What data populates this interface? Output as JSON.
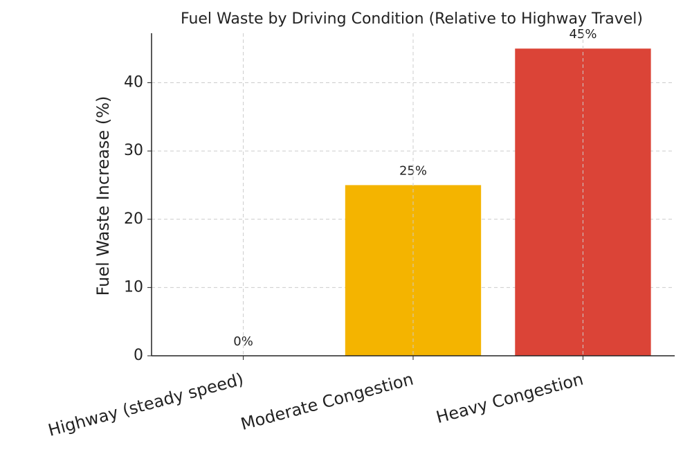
{
  "chart_data": {
    "type": "bar",
    "title": "Fuel Waste by Driving Condition (Relative to Highway Travel)",
    "y_label": "Fuel Waste Increase (%)",
    "categories": [
      "Highway (steady speed)",
      "Moderate Congestion",
      "Heavy Congestion"
    ],
    "values": [
      0,
      25,
      45
    ],
    "value_labels": [
      "0%",
      "25%",
      "45%"
    ],
    "colors": [
      "#4caf50",
      "#f4b400",
      "#db4437"
    ],
    "ylim": [
      0,
      47.25
    ],
    "yticks": [
      0,
      10,
      20,
      30,
      40
    ],
    "grid": true
  }
}
